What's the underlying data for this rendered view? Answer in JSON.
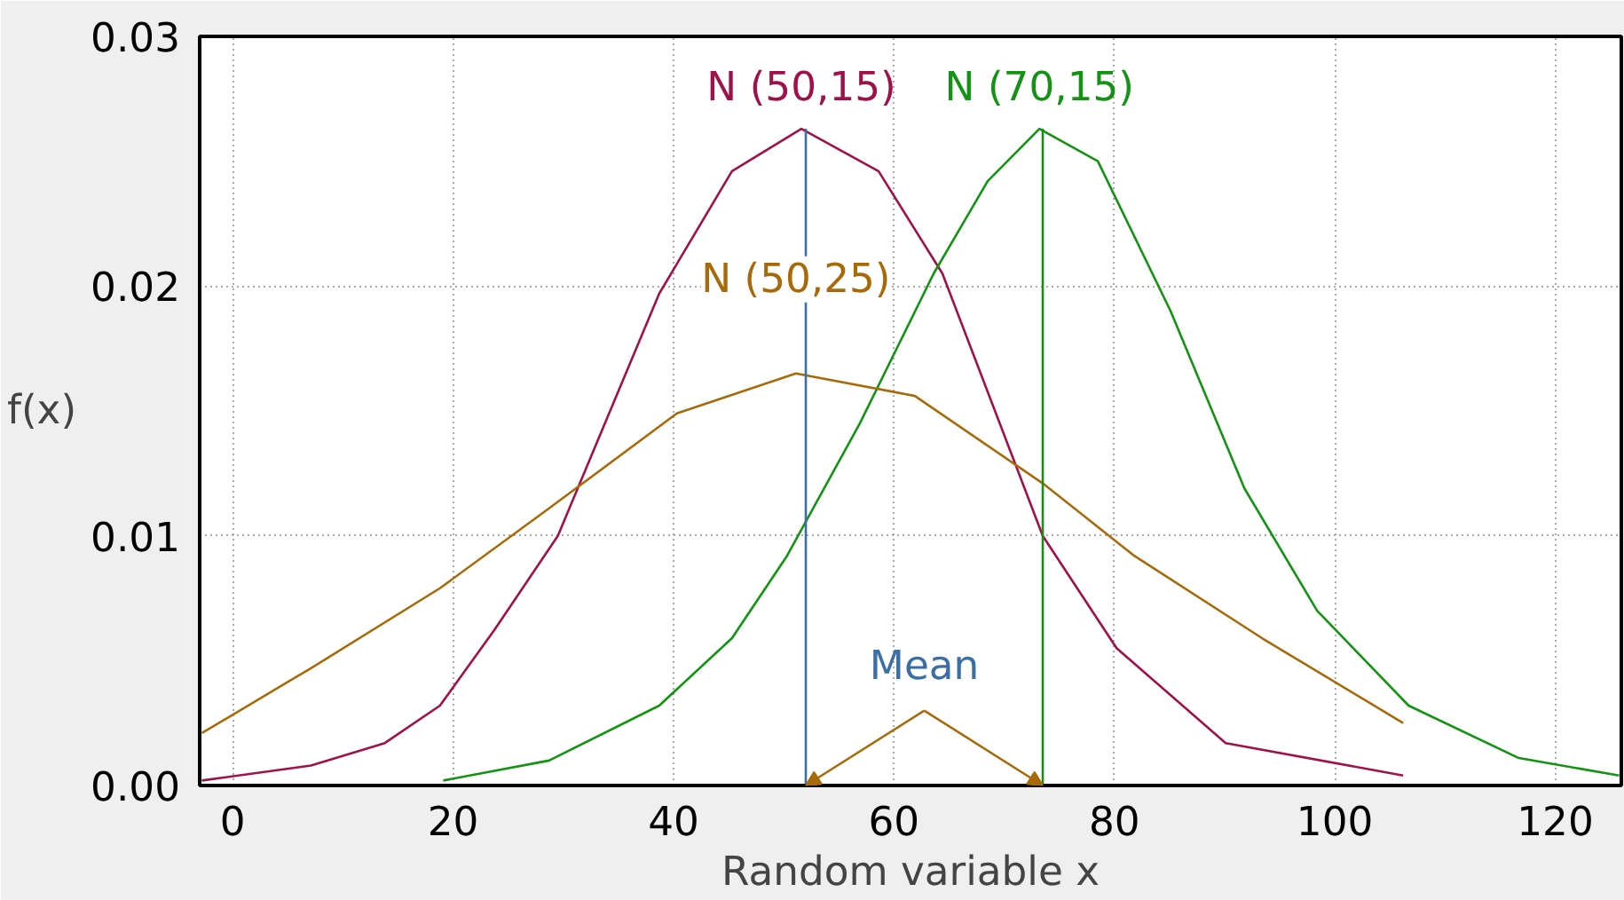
{
  "chart_data": {
    "type": "line",
    "xlabel": "Random variable x",
    "ylabel": "f(x)",
    "xlim": [
      -3,
      126
    ],
    "xticks": [
      0,
      20,
      40,
      60,
      80,
      100,
      120
    ],
    "ylim": [
      0,
      0.03
    ],
    "yticks": [
      {
        "value": 0,
        "label": "0.00"
      },
      0.01,
      0.02,
      0.03
    ],
    "grid": true,
    "marker": "none",
    "line_style": "solid",
    "series": [
      {
        "name": "N (50,15)",
        "color": "#a0104a",
        "x": [
          -2.8,
          7.1,
          13.8,
          18.8,
          23.7,
          29.5,
          38.7,
          45.3,
          51.6,
          58.6,
          64.4,
          73.5,
          80.2,
          90.1,
          106.2
        ],
        "values": [
          0.0002,
          0.0008,
          0.0017,
          0.0032,
          0.0062,
          0.01,
          0.0197,
          0.0246,
          0.0263,
          0.0246,
          0.0205,
          0.01,
          0.0055,
          0.0017,
          0.0004
        ]
      },
      {
        "name": "N (70,15)",
        "color": "#129312",
        "x": [
          19.1,
          28.7,
          38.7,
          45.3,
          50.3,
          56.9,
          63.6,
          68.5,
          73.2,
          78.5,
          85.1,
          91.8,
          98.4,
          106.7,
          116.7,
          125.8
        ],
        "values": [
          0.0002,
          0.001,
          0.0032,
          0.0059,
          0.0092,
          0.0145,
          0.0205,
          0.0242,
          0.0263,
          0.025,
          0.019,
          0.0119,
          0.007,
          0.0032,
          0.0011,
          0.0004
        ]
      },
      {
        "name": "N (50,25)",
        "color": "#a86a08",
        "x": [
          -2.8,
          7.1,
          18.8,
          28.7,
          40.3,
          51.1,
          61.9,
          73.5,
          81.8,
          93.4,
          106.2
        ],
        "values": [
          0.0021,
          0.0047,
          0.0079,
          0.0111,
          0.0149,
          0.0165,
          0.0156,
          0.0121,
          0.0092,
          0.0059,
          0.0025
        ]
      }
    ],
    "ref_lines": [
      {
        "axis": "x",
        "value": 52.0,
        "color": "#3a6ea5"
      },
      {
        "axis": "x",
        "value": 73.5,
        "color": "#129312"
      }
    ],
    "annotations": [
      {
        "text": "Mean",
        "x": 52.0,
        "y": 0
      }
    ]
  }
}
